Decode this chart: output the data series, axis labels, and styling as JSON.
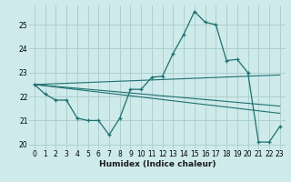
{
  "title": "",
  "xlabel": "Humidex (Indice chaleur)",
  "background_color": "#ceeaea",
  "line_color": "#1e7070",
  "grid_color": "#aed0d0",
  "xlim": [
    -0.5,
    23.5
  ],
  "ylim": [
    19.8,
    25.8
  ],
  "xticks": [
    0,
    1,
    2,
    3,
    4,
    5,
    6,
    7,
    8,
    9,
    10,
    11,
    12,
    13,
    14,
    15,
    16,
    17,
    18,
    19,
    20,
    21,
    22,
    23
  ],
  "yticks": [
    20,
    21,
    22,
    23,
    24,
    25
  ],
  "series": [
    {
      "x": [
        0,
        1,
        2,
        3,
        4,
        5,
        6,
        7,
        8,
        9,
        10,
        11,
        12,
        13,
        14,
        15,
        16,
        17,
        18,
        19,
        20,
        21,
        22,
        23
      ],
      "y": [
        22.5,
        22.1,
        21.85,
        21.85,
        21.1,
        21.0,
        21.0,
        20.4,
        21.1,
        22.3,
        22.3,
        22.8,
        22.85,
        23.8,
        24.6,
        25.55,
        25.1,
        25.0,
        23.5,
        23.55,
        23.0,
        20.1,
        20.1,
        20.75
      ],
      "marker": true
    },
    {
      "x": [
        0,
        23
      ],
      "y": [
        22.5,
        22.9
      ],
      "marker": false
    },
    {
      "x": [
        0,
        23
      ],
      "y": [
        22.5,
        21.6
      ],
      "marker": false
    },
    {
      "x": [
        0,
        23
      ],
      "y": [
        22.5,
        21.3
      ],
      "marker": false
    }
  ]
}
